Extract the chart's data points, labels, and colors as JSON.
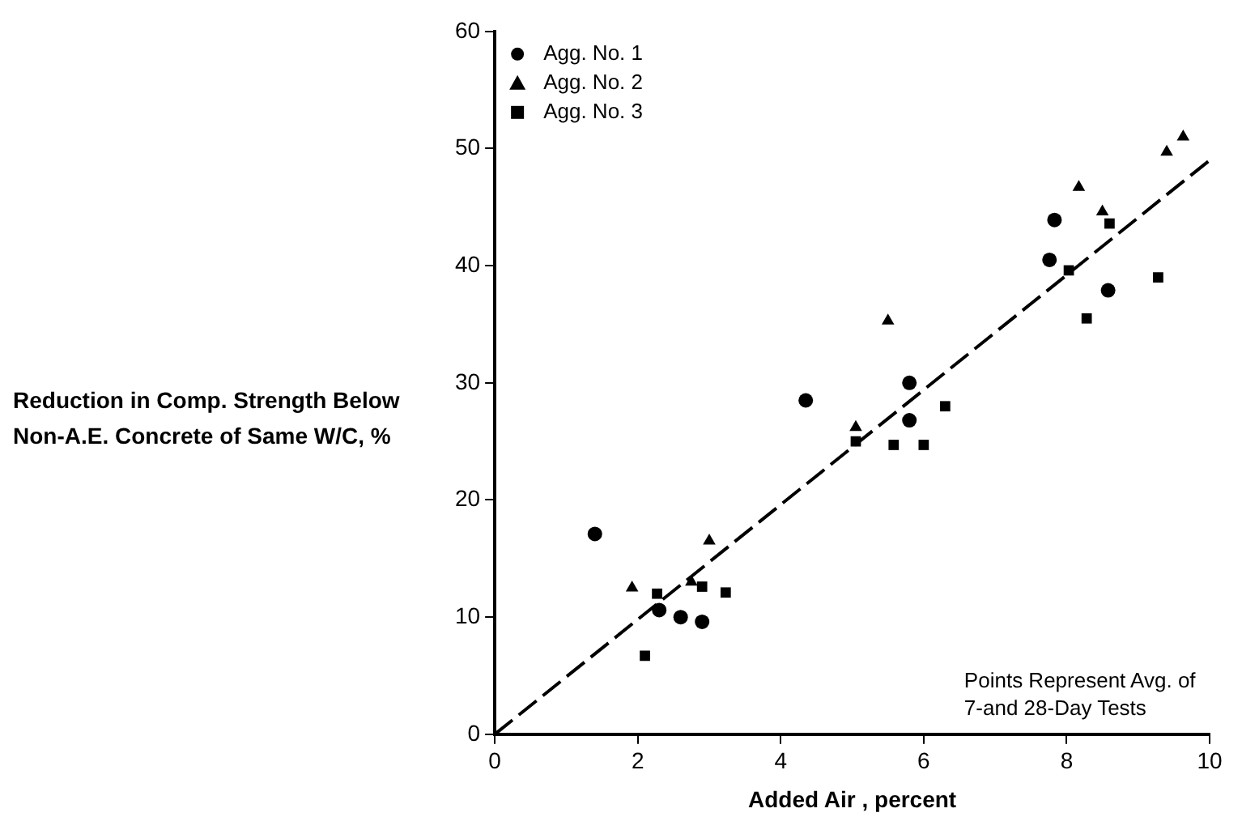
{
  "chart_data": {
    "type": "scatter",
    "xlabel": "Added Air , percent",
    "ylabel": "Reduction in Comp. Strength Below Non-A.E. Concrete of Same W/C, %",
    "xlim": [
      0,
      10
    ],
    "xticks": [
      0,
      2,
      4,
      6,
      8,
      10
    ],
    "ylim": [
      0,
      60
    ],
    "yticks": [
      0,
      10,
      20,
      30,
      40,
      50,
      60
    ],
    "grid": false,
    "legend": "top left",
    "annotations": [
      "Points Represent Avg. of 7-and 28-Day Tests"
    ],
    "series": [
      {
        "name": "Agg. No. 1",
        "color": "#000000",
        "marker": "circle",
        "x": [
          1.4,
          2.3,
          2.6,
          2.9,
          4.35,
          5.8,
          5.8,
          7.83,
          7.76,
          8.58
        ],
        "values": [
          17.1,
          10.6,
          10,
          9.6,
          28.5,
          30,
          26.8,
          43.9,
          40.5,
          37.9
        ]
      },
      {
        "name": "Agg. No. 2",
        "color": "#000000",
        "marker": "triangle",
        "x": [
          1.92,
          2.75,
          3.0,
          5.05,
          5.5,
          8.17,
          8.5,
          9.4,
          9.63
        ],
        "values": [
          12.5,
          13,
          16.5,
          26.2,
          35.3,
          46.7,
          44.6,
          49.7,
          51
        ]
      },
      {
        "name": "Agg. No. 3",
        "color": "#000000",
        "marker": "square",
        "x": [
          2.1,
          2.27,
          2.9,
          3.23,
          5.05,
          5.58,
          6.0,
          6.3,
          8.03,
          8.28,
          8.6,
          9.28
        ],
        "values": [
          6.7,
          12,
          12.6,
          12.1,
          25,
          24.7,
          24.7,
          28,
          39.6,
          35.5,
          43.6,
          39
        ]
      },
      {
        "type": "line",
        "color": "#000000",
        "marker": "none",
        "line_style": "dashed",
        "x": [
          0,
          10
        ],
        "values": [
          0,
          49
        ]
      }
    ]
  }
}
